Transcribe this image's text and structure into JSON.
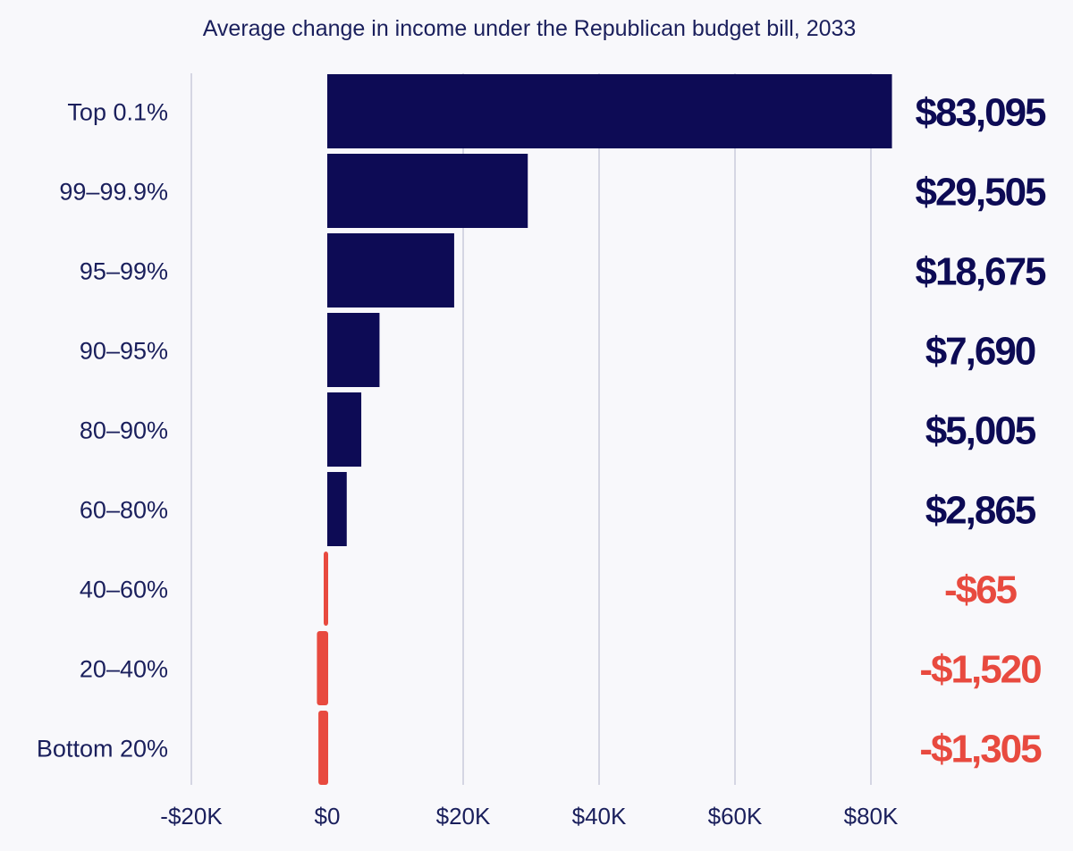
{
  "chart_data": {
    "type": "bar",
    "orientation": "horizontal",
    "title": "Average change in income under the Republican budget bill, 2033",
    "xlabel": "",
    "ylabel": "",
    "categories": [
      "Top 0.1%",
      "99–99.9%",
      "95–99%",
      "90–95%",
      "80–90%",
      "60–80%",
      "40–60%",
      "20–40%",
      "Bottom 20%"
    ],
    "values": [
      83095,
      29505,
      18675,
      7690,
      5005,
      2865,
      -65,
      -1520,
      -1305
    ],
    "value_labels": [
      "$83,095",
      "$29,505",
      "$18,675",
      "$7,690",
      "$5,005",
      "$2,865",
      "-$65",
      "-$1,520",
      "-$1,305"
    ],
    "xlim": [
      -20000,
      80000
    ],
    "x_ticks": [
      -20000,
      0,
      20000,
      40000,
      60000,
      80000
    ],
    "x_tick_labels": [
      "-$20K",
      "$0",
      "$20K",
      "$40K",
      "$60K",
      "$80K"
    ],
    "grid": "vertical",
    "legend": "none",
    "colors": {
      "positive": "#0d0b55",
      "negative": "#e84a3f",
      "text": "#1a1f5c",
      "grid": "#c9cadb",
      "background": "#f8f8fb"
    }
  }
}
